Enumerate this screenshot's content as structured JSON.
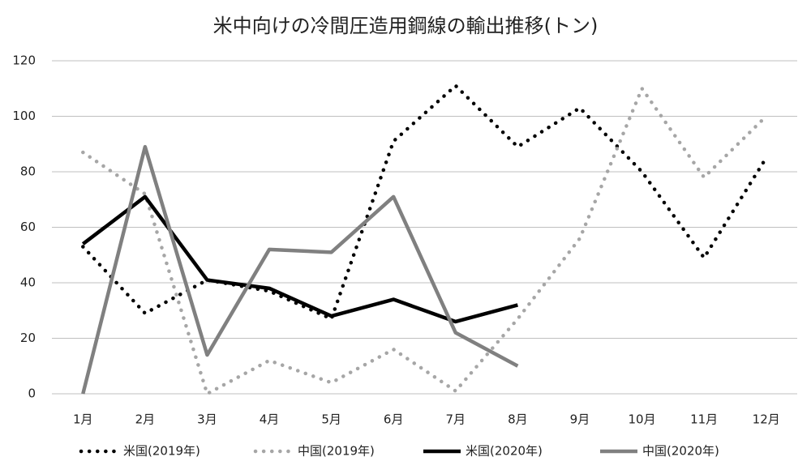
{
  "chart_data": {
    "type": "line",
    "title": "米中向けの冷間圧造用鋼線の輸出推移(トン)",
    "categories": [
      "1月",
      "2月",
      "3月",
      "4月",
      "5月",
      "6月",
      "7月",
      "8月",
      "9月",
      "10月",
      "11月",
      "12月"
    ],
    "series": [
      {
        "name": "米国(2019年)",
        "color": "#000000",
        "style": "dotted",
        "values": [
          53,
          29,
          41,
          37,
          27,
          91,
          111,
          89,
          103,
          80,
          49,
          85
        ]
      },
      {
        "name": "中国(2019年)",
        "color": "#a6a6a6",
        "style": "dotted",
        "values": [
          87,
          72,
          0,
          12,
          4,
          16,
          1,
          27,
          56,
          110,
          78,
          100
        ]
      },
      {
        "name": "米国(2020年)",
        "color": "#000000",
        "style": "solid",
        "values": [
          54,
          71,
          41,
          38,
          28,
          34,
          26,
          32,
          null,
          null,
          null,
          null
        ]
      },
      {
        "name": "中国(2020年)",
        "color": "#808080",
        "style": "solid",
        "values": [
          0,
          89,
          14,
          52,
          51,
          71,
          22,
          10,
          null,
          null,
          null,
          null
        ]
      }
    ],
    "ylim": [
      0,
      120
    ],
    "yticks": [
      0,
      20,
      40,
      60,
      80,
      100,
      120
    ],
    "grid": true,
    "legend": "bottom"
  }
}
